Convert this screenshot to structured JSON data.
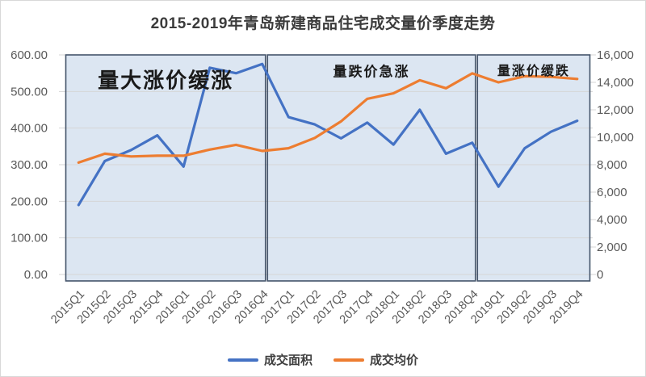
{
  "title": "2015-2019年青岛新建商品住宅成交量价季度走势",
  "chart_data": {
    "type": "line",
    "title": "2015-2019年青岛新建商品住宅成交量价季度走势",
    "categories": [
      "2015Q1",
      "2015Q2",
      "2015Q3",
      "2015Q4",
      "2016Q1",
      "2016Q2",
      "2016Q3",
      "2016Q4",
      "2017Q1",
      "2017Q2",
      "2017Q3",
      "2017Q4",
      "2018Q1",
      "2018Q2",
      "2018Q3",
      "2018Q4",
      "2019Q1",
      "2019Q2",
      "2019Q3",
      "2019Q4"
    ],
    "series": [
      {
        "name": "成交面积",
        "axis": "left",
        "color": "#4472C4",
        "values": [
          190,
          310,
          340,
          380,
          295,
          565,
          550,
          575,
          430,
          410,
          372,
          415,
          355,
          450,
          330,
          360,
          240,
          345,
          390,
          420
        ]
      },
      {
        "name": "成交均价",
        "axis": "right",
        "color": "#ED7D31",
        "values": [
          8150,
          8800,
          8600,
          8650,
          8650,
          9100,
          9450,
          9000,
          9200,
          9950,
          11150,
          12800,
          13200,
          14150,
          13570,
          14650,
          14000,
          14450,
          14400,
          14250
        ]
      }
    ],
    "left_axis": {
      "min": 0,
      "max": 600,
      "tick_step": 100,
      "tick_labels": [
        "0.00",
        "100.00",
        "200.00",
        "300.00",
        "400.00",
        "500.00",
        "600.00"
      ]
    },
    "right_axis": {
      "min": 0,
      "max": 16000,
      "tick_step": 2000,
      "tick_labels": [
        "0",
        "2,000",
        "4,000",
        "6,000",
        "8,000",
        "10,000",
        "12,000",
        "14,000",
        "16,000"
      ]
    },
    "regions": [
      {
        "label": "量大涨价缓涨",
        "from": 0,
        "to": 7,
        "label_size": 26
      },
      {
        "label": "量跌价急涨",
        "from": 8,
        "to": 15,
        "label_size": 17
      },
      {
        "label": "量涨价缓跌",
        "from": 16,
        "to": 19,
        "label_size": 16
      }
    ],
    "grid": "horizontal",
    "legend_position": "bottom",
    "colors": {
      "region_fill": "#dce6f2",
      "region_border": "#44546A",
      "gridline": "#d6d6d6",
      "axis_text": "#595959",
      "annotation_text": "#1a1a1a"
    }
  },
  "legend": {
    "items": [
      {
        "label": "成交面积",
        "color": "#4472C4"
      },
      {
        "label": "成交均价",
        "color": "#ED7D31"
      }
    ]
  }
}
